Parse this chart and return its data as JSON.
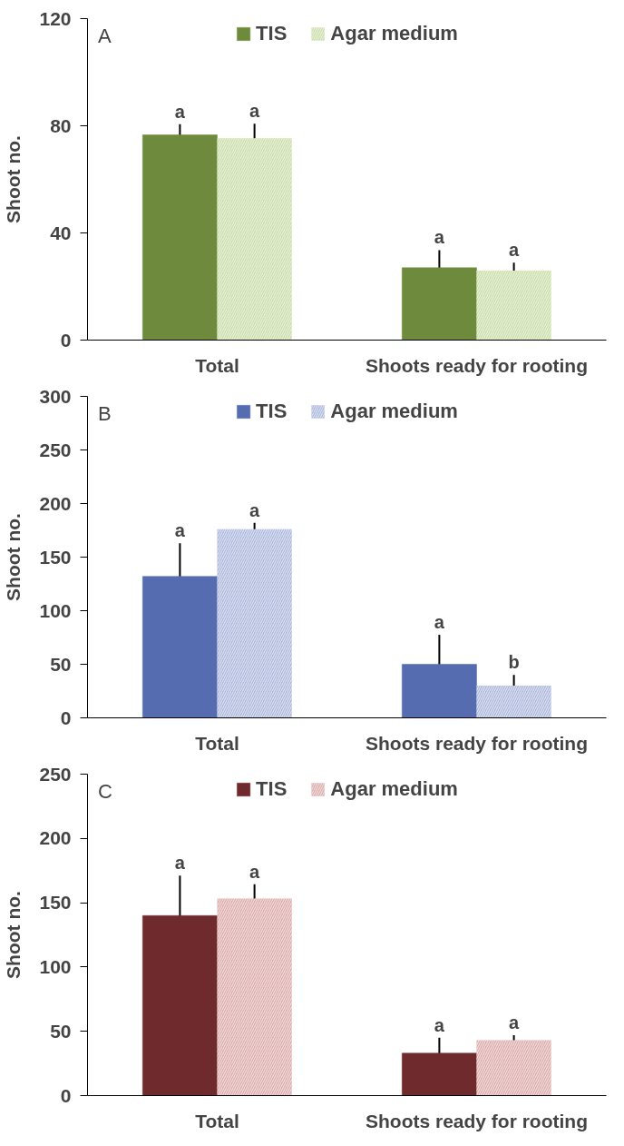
{
  "chart_data": [
    {
      "type": "bar",
      "title": "A",
      "ylabel": "Shoot no.",
      "categories": [
        "Total",
        "Shoots ready for rooting"
      ],
      "ylim": [
        0,
        120
      ],
      "yticks": [
        0,
        40,
        80,
        120
      ],
      "grid": false,
      "legend": "top",
      "series": [
        {
          "name": "TIS",
          "color": "#6e8b3d",
          "values": [
            76.6,
            27
          ],
          "errors": [
            4,
            6.6
          ]
        },
        {
          "name": "Agar medium",
          "color": "#c9dca6",
          "values": [
            75.3,
            25.9
          ],
          "errors": [
            5.5,
            3
          ]
        }
      ],
      "annotations": [
        "a",
        "a",
        "a",
        "a"
      ]
    },
    {
      "type": "bar",
      "title": "B",
      "ylabel": "Shoot no.",
      "categories": [
        "Total",
        "Shoots ready for rooting"
      ],
      "ylim": [
        0,
        300
      ],
      "yticks": [
        0,
        50,
        100,
        150,
        200,
        250,
        300
      ],
      "grid": false,
      "legend": "top",
      "series": [
        {
          "name": "TIS",
          "color": "#566cb0",
          "values": [
            132,
            50
          ],
          "errors": [
            31,
            27.5
          ]
        },
        {
          "name": "Agar medium",
          "color": "#a9b6db",
          "values": [
            176,
            30
          ],
          "errors": [
            6,
            10
          ]
        }
      ],
      "annotations": [
        "a",
        "a",
        "a",
        "b"
      ]
    },
    {
      "type": "bar",
      "title": "C",
      "ylabel": "Shoot no.",
      "categories": [
        "Total",
        "Shoots ready for rooting"
      ],
      "ylim": [
        0,
        250
      ],
      "yticks": [
        0,
        50,
        100,
        150,
        200,
        250
      ],
      "grid": false,
      "legend": "top",
      "series": [
        {
          "name": "TIS",
          "color": "#6e2a2c",
          "values": [
            140,
            33
          ],
          "errors": [
            31,
            12
          ]
        },
        {
          "name": "Agar medium",
          "color": "#dba9a9",
          "values": [
            153.3,
            43
          ],
          "errors": [
            11,
            4
          ]
        }
      ],
      "annotations": [
        "a",
        "a",
        "a",
        "a"
      ]
    }
  ]
}
